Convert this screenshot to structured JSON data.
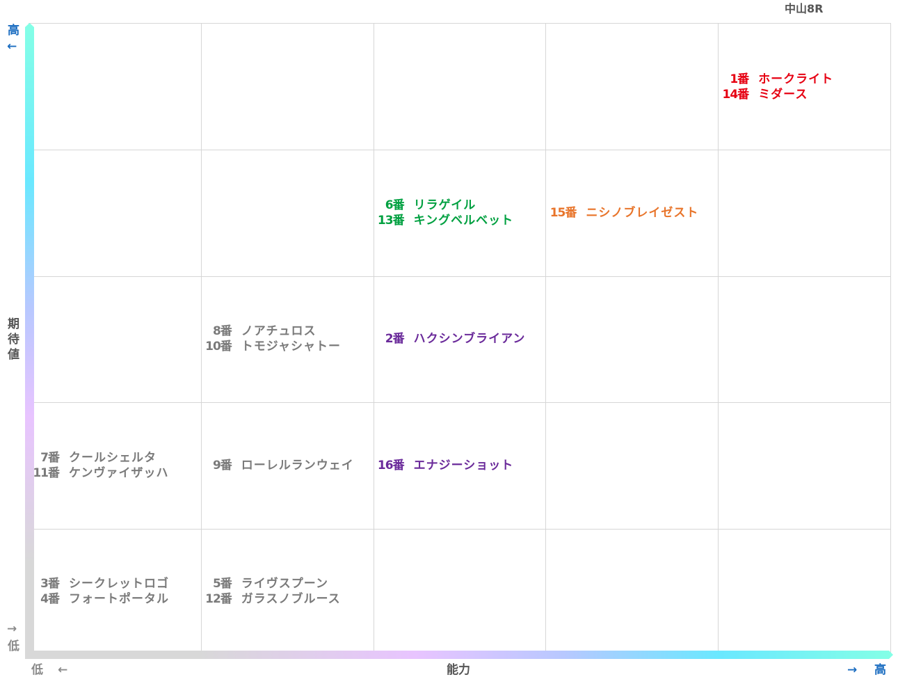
{
  "title": "中山8R",
  "axes": {
    "y_label": "期待値",
    "y_high": "高",
    "y_high_arrow": "←",
    "y_low": "低",
    "y_low_arrow": "→",
    "x_label": "能力",
    "x_low": "低",
    "x_low_arrow": "←",
    "x_high": "高",
    "x_high_arrow": "→",
    "levels": 5
  },
  "colors": {
    "high_color": "#1a6cc0",
    "low_color": "#8a8a8a",
    "red": "#e60012",
    "green": "#00a040",
    "orange": "#e8742a",
    "purple": "#6a2a9a",
    "gray": "#7a7a7a"
  },
  "cells": [
    {
      "ability": 5,
      "expectation": 5,
      "color": "#e60012",
      "entries": [
        {
          "num": "1番",
          "name": "ホークライト"
        },
        {
          "num": "14番",
          "name": "ミダース"
        }
      ]
    },
    {
      "ability": 3,
      "expectation": 4,
      "color": "#00a040",
      "entries": [
        {
          "num": "6番",
          "name": "リラゲイル"
        },
        {
          "num": "13番",
          "name": "キングベルベット"
        }
      ]
    },
    {
      "ability": 4,
      "expectation": 4,
      "color": "#e8742a",
      "entries": [
        {
          "num": "15番",
          "name": "ニシノブレイゼスト"
        }
      ]
    },
    {
      "ability": 2,
      "expectation": 3,
      "color": "#7a7a7a",
      "entries": [
        {
          "num": "8番",
          "name": "ノアチュロス"
        },
        {
          "num": "10番",
          "name": "トモジャシャトー"
        }
      ]
    },
    {
      "ability": 3,
      "expectation": 3,
      "color": "#6a2a9a",
      "entries": [
        {
          "num": "2番",
          "name": "ハクシンブライアン"
        }
      ]
    },
    {
      "ability": 1,
      "expectation": 2,
      "color": "#7a7a7a",
      "entries": [
        {
          "num": "7番",
          "name": "クールシェルタ"
        },
        {
          "num": "11番",
          "name": "ケンヴァイザッハ"
        }
      ]
    },
    {
      "ability": 2,
      "expectation": 2,
      "color": "#7a7a7a",
      "entries": [
        {
          "num": "9番",
          "name": "ローレルランウェイ"
        }
      ]
    },
    {
      "ability": 3,
      "expectation": 2,
      "color": "#6a2a9a",
      "entries": [
        {
          "num": "16番",
          "name": "エナジーショット"
        }
      ]
    },
    {
      "ability": 1,
      "expectation": 1,
      "color": "#7a7a7a",
      "entries": [
        {
          "num": "3番",
          "name": "シークレットロゴ"
        },
        {
          "num": "4番",
          "name": "フォートポータル"
        }
      ]
    },
    {
      "ability": 2,
      "expectation": 1,
      "color": "#7a7a7a",
      "entries": [
        {
          "num": "5番",
          "name": "ライヴスプーン"
        },
        {
          "num": "12番",
          "name": "ガラスノブルース"
        }
      ]
    }
  ]
}
